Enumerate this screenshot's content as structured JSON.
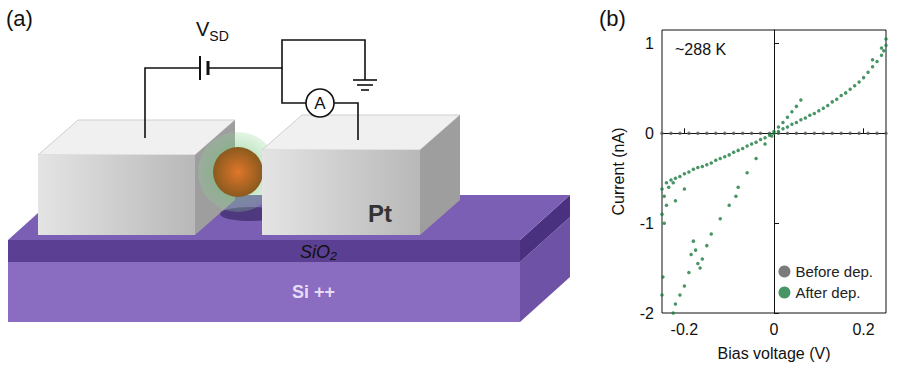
{
  "panel_letters": [
    "(a)",
    "(b)"
  ],
  "panel_a": {
    "voltage_source": {
      "label": "V",
      "subscript": "SD"
    },
    "ammeter": "A",
    "layers": {
      "electrodes": "Pt",
      "insulator": "SiO₂",
      "substrate": "Si ++"
    }
  },
  "chart_data": {
    "type": "scatter",
    "x_label": "Bias voltage (V)",
    "y_label": "Current (nA)",
    "annotations": [
      "~288 K"
    ],
    "xlim": [
      -0.25,
      0.25
    ],
    "ylim": [
      -2,
      1.15
    ],
    "xticks": [
      -0.2,
      0,
      0.2
    ],
    "yticks": [
      -2,
      -1,
      0,
      1
    ],
    "legend": "bottom-right",
    "marker": "circle",
    "grid": false,
    "series": [
      {
        "name": "Before dep.",
        "color": "#5a5a5a",
        "x": [
          -0.25,
          -0.23,
          -0.21,
          -0.19,
          -0.17,
          -0.15,
          -0.13,
          -0.11,
          -0.09,
          -0.07,
          -0.05,
          -0.03,
          -0.01,
          0.01,
          0.03,
          0.05,
          0.07,
          0.09,
          0.11,
          0.13,
          0.15,
          0.17,
          0.19,
          0.21,
          0.23,
          0.25
        ],
        "values": [
          0,
          0,
          0,
          0,
          0,
          0,
          0,
          0,
          0,
          0,
          0,
          0,
          0,
          0,
          0,
          0,
          0,
          0,
          0,
          0,
          0,
          0,
          0,
          0,
          0,
          0
        ]
      },
      {
        "name": "After dep.",
        "color": "#1a7a40",
        "x": [
          -0.25,
          -0.245,
          -0.24,
          -0.235,
          -0.23,
          -0.225,
          -0.22,
          -0.21,
          -0.2,
          -0.19,
          -0.18,
          -0.17,
          -0.16,
          -0.15,
          -0.14,
          -0.13,
          -0.12,
          -0.11,
          -0.1,
          -0.09,
          -0.08,
          -0.07,
          -0.06,
          -0.05,
          -0.04,
          -0.03,
          -0.02,
          -0.01,
          0,
          0.01,
          0.02,
          0.03,
          0.04,
          0.05,
          0.06,
          0.07,
          0.08,
          0.09,
          0.1,
          0.11,
          0.12,
          0.13,
          0.14,
          0.15,
          0.16,
          0.17,
          0.18,
          0.19,
          0.2,
          0.21,
          0.22,
          0.23,
          0.24,
          0.245,
          0.25,
          0,
          0.01,
          0.02,
          0.03,
          0.04,
          0.05,
          0.06,
          0.22,
          0.24,
          0.25,
          -0.005,
          -0.02,
          -0.04,
          -0.06,
          -0.08,
          -0.085,
          -0.1,
          -0.12,
          -0.14,
          -0.15,
          -0.16,
          -0.165,
          -0.17,
          -0.175,
          -0.18,
          -0.185,
          -0.19,
          -0.2,
          -0.21,
          -0.22,
          -0.225,
          -0.25,
          -0.245,
          -0.24,
          -0.248,
          -0.25,
          -0.2,
          -0.22
        ],
        "values": [
          -0.62,
          -0.7,
          -0.55,
          -0.6,
          -0.52,
          -0.55,
          -0.5,
          -0.48,
          -0.45,
          -0.43,
          -0.4,
          -0.38,
          -0.37,
          -0.35,
          -0.33,
          -0.3,
          -0.28,
          -0.26,
          -0.24,
          -0.21,
          -0.19,
          -0.17,
          -0.14,
          -0.12,
          -0.1,
          -0.07,
          -0.05,
          -0.02,
          0,
          0.02,
          0.05,
          0.07,
          0.1,
          0.12,
          0.15,
          0.17,
          0.2,
          0.22,
          0.25,
          0.28,
          0.31,
          0.35,
          0.38,
          0.42,
          0.45,
          0.49,
          0.53,
          0.57,
          0.62,
          0.68,
          0.74,
          0.8,
          0.87,
          0.92,
          0.98,
          0.02,
          0.07,
          0.12,
          0.18,
          0.24,
          0.3,
          0.37,
          0.82,
          0.95,
          1.05,
          -0.03,
          -0.12,
          -0.28,
          -0.44,
          -0.6,
          -0.7,
          -0.8,
          -0.95,
          -1.12,
          -1.25,
          -1.4,
          -1.5,
          -1.45,
          -1.3,
          -1.2,
          -1.35,
          -1.55,
          -1.7,
          -1.8,
          -1.9,
          -2.0,
          -0.9,
          -1.0,
          -0.8,
          -1.6,
          -1.8,
          -0.62,
          -0.75
        ]
      }
    ]
  }
}
